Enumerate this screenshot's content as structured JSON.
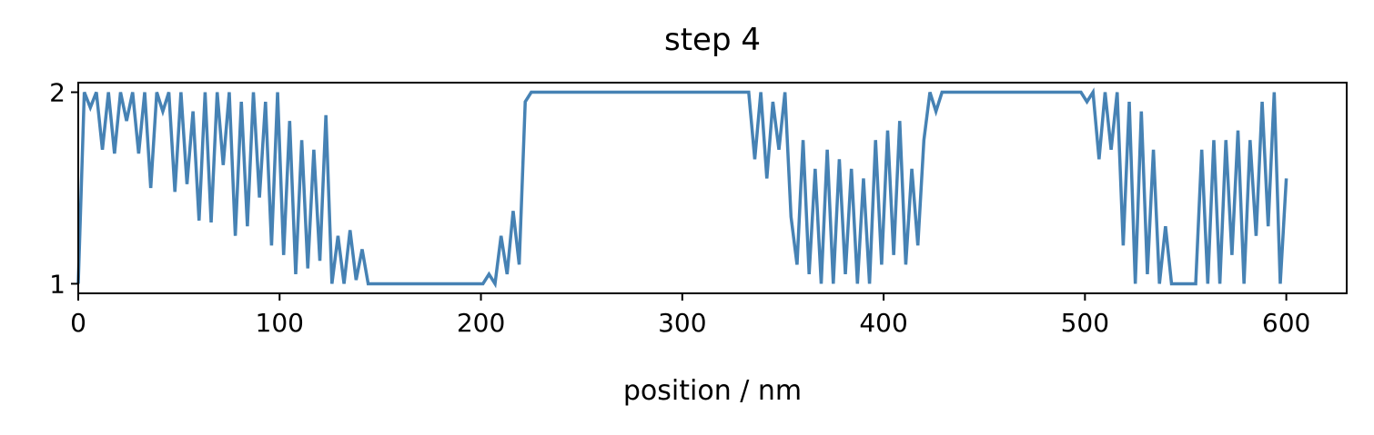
{
  "chart_data": {
    "type": "line",
    "title": "step 4",
    "xlabel": "position / nm",
    "color": "#4682b4",
    "xlim": [
      0,
      630
    ],
    "ylim": [
      0.95,
      2.05
    ],
    "xticks": [
      0,
      100,
      200,
      300,
      400,
      500,
      600
    ],
    "yticks": [
      1,
      2
    ],
    "x": [
      0,
      3,
      6,
      9,
      12,
      15,
      18,
      21,
      24,
      27,
      30,
      33,
      36,
      39,
      42,
      45,
      48,
      51,
      54,
      57,
      60,
      63,
      66,
      69,
      72,
      75,
      78,
      81,
      84,
      87,
      90,
      93,
      96,
      99,
      102,
      105,
      108,
      111,
      114,
      117,
      120,
      123,
      126,
      129,
      132,
      135,
      138,
      141,
      144,
      147,
      150,
      153,
      156,
      159,
      162,
      165,
      168,
      171,
      174,
      177,
      180,
      183,
      186,
      189,
      192,
      195,
      198,
      201,
      204,
      207,
      210,
      213,
      216,
      219,
      222,
      225,
      228,
      231,
      234,
      237,
      240,
      243,
      246,
      249,
      252,
      255,
      258,
      261,
      264,
      267,
      270,
      273,
      276,
      279,
      282,
      285,
      288,
      291,
      294,
      297,
      300,
      303,
      306,
      309,
      312,
      315,
      318,
      321,
      324,
      327,
      330,
      333,
      336,
      339,
      342,
      345,
      348,
      351,
      354,
      357,
      360,
      363,
      366,
      369,
      372,
      375,
      378,
      381,
      384,
      387,
      390,
      393,
      396,
      399,
      402,
      405,
      408,
      411,
      414,
      417,
      420,
      423,
      426,
      429,
      432,
      435,
      438,
      441,
      444,
      447,
      450,
      453,
      456,
      459,
      462,
      465,
      468,
      471,
      474,
      477,
      480,
      483,
      486,
      489,
      492,
      495,
      498,
      501,
      504,
      507,
      510,
      513,
      516,
      519,
      522,
      525,
      528,
      531,
      534,
      537,
      540,
      543,
      546,
      549,
      552,
      555,
      558,
      561,
      564,
      567,
      570,
      573,
      576,
      579,
      582,
      585,
      588,
      591,
      594,
      597,
      600
    ],
    "values": [
      1,
      2,
      1.92,
      2,
      1.7,
      2,
      1.68,
      2,
      1.85,
      2,
      1.68,
      2,
      1.5,
      2,
      1.9,
      2,
      1.48,
      2,
      1.52,
      1.9,
      1.33,
      2,
      1.32,
      2,
      1.62,
      2,
      1.25,
      1.95,
      1.3,
      2,
      1.45,
      1.95,
      1.2,
      2,
      1.15,
      1.85,
      1.05,
      1.75,
      1.08,
      1.7,
      1.12,
      1.88,
      1,
      1.25,
      1,
      1.28,
      1.02,
      1.18,
      1,
      1,
      1,
      1,
      1,
      1,
      1,
      1,
      1,
      1,
      1,
      1,
      1,
      1,
      1,
      1,
      1,
      1,
      1,
      1,
      1.05,
      1,
      1.25,
      1.05,
      1.38,
      1.1,
      1.95,
      2,
      2,
      2,
      2,
      2,
      2,
      2,
      2,
      2,
      2,
      2,
      2,
      2,
      2,
      2,
      2,
      2,
      2,
      2,
      2,
      2,
      2,
      2,
      2,
      2,
      2,
      2,
      2,
      2,
      2,
      2,
      2,
      2,
      2,
      2,
      2,
      2,
      1.65,
      2,
      1.55,
      1.95,
      1.7,
      2,
      1.35,
      1.1,
      1.75,
      1.05,
      1.6,
      1,
      1.7,
      1,
      1.65,
      1.05,
      1.6,
      1,
      1.55,
      1,
      1.75,
      1.1,
      1.8,
      1.15,
      1.85,
      1.1,
      1.6,
      1.2,
      1.75,
      2,
      1.9,
      2,
      2,
      2,
      2,
      2,
      2,
      2,
      2,
      2,
      2,
      2,
      2,
      2,
      2,
      2,
      2,
      2,
      2,
      2,
      2,
      2,
      2,
      2,
      2,
      1.95,
      2,
      1.65,
      2,
      1.7,
      2,
      1.2,
      1.95,
      1,
      1.9,
      1.05,
      1.7,
      1,
      1.3,
      1,
      1,
      1,
      1,
      1,
      1.7,
      1,
      1.75,
      1,
      1.75,
      1.15,
      1.8,
      1,
      1.75,
      1.25,
      1.95,
      1.3,
      2,
      1,
      1.55
    ]
  }
}
